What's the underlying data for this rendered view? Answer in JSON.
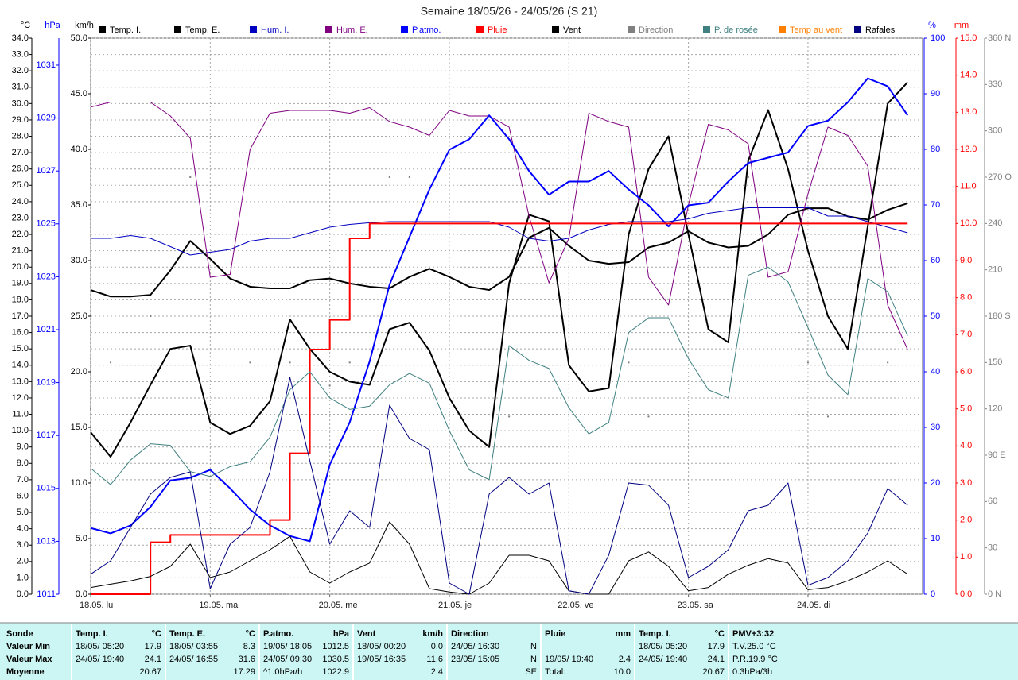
{
  "chart_data": {
    "type": "line",
    "title": "Semaine 18/05/26 - 24/05/26 (S 21)",
    "xlim": [
      0,
      167
    ],
    "xticks": [
      {
        "value": 0,
        "label": "18.05. lu"
      },
      {
        "value": 24,
        "label": "19.05. ma"
      },
      {
        "value": 48,
        "label": "20.05. me"
      },
      {
        "value": 72,
        "label": "21.05. je"
      },
      {
        "value": 96,
        "label": "22.05. ve"
      },
      {
        "value": 120,
        "label": "23.05. sa"
      },
      {
        "value": 144,
        "label": "24.05. di"
      }
    ],
    "grid": true,
    "axes": {
      "temp": {
        "label": "°C",
        "color": "#000000",
        "lim": [
          0,
          34
        ],
        "ticks": [
          {
            "value": 0,
            "label": "0.0"
          },
          {
            "value": 1,
            "label": "1.0"
          },
          {
            "value": 2,
            "label": "2.0"
          },
          {
            "value": 3,
            "label": "3.0"
          },
          {
            "value": 4,
            "label": "4.0"
          },
          {
            "value": 5,
            "label": "5.0"
          },
          {
            "value": 6,
            "label": "6.0"
          },
          {
            "value": 7,
            "label": "7.0"
          },
          {
            "value": 8,
            "label": "8.0"
          },
          {
            "value": 9,
            "label": "9.0"
          },
          {
            "value": 10,
            "label": "10.0"
          },
          {
            "value": 11,
            "label": "11.0"
          },
          {
            "value": 12,
            "label": "12.0"
          },
          {
            "value": 13,
            "label": "13.0"
          },
          {
            "value": 14,
            "label": "14.0"
          },
          {
            "value": 15,
            "label": "15.0"
          },
          {
            "value": 16,
            "label": "16.0"
          },
          {
            "value": 17,
            "label": "17.0"
          },
          {
            "value": 18,
            "label": "18.0"
          },
          {
            "value": 19,
            "label": "19.0"
          },
          {
            "value": 20,
            "label": "20.0"
          },
          {
            "value": 21,
            "label": "21.0"
          },
          {
            "value": 22,
            "label": "22.0"
          },
          {
            "value": 23,
            "label": "23.0"
          },
          {
            "value": 24,
            "label": "24.0"
          },
          {
            "value": 25,
            "label": "25.0"
          },
          {
            "value": 26,
            "label": "26.0"
          },
          {
            "value": 27,
            "label": "27.0"
          },
          {
            "value": 28,
            "label": "28.0"
          },
          {
            "value": 29,
            "label": "29.0"
          },
          {
            "value": 30,
            "label": "30.0"
          },
          {
            "value": 31,
            "label": "31.0"
          },
          {
            "value": 32,
            "label": "32.0"
          },
          {
            "value": 33,
            "label": "33.0"
          },
          {
            "value": 34,
            "label": "34.0"
          }
        ]
      },
      "hpa": {
        "label": "hPa",
        "color": "#0000ff",
        "lim": [
          1011,
          1032.02
        ],
        "ticks": [
          1011,
          1013,
          1015,
          1017,
          1019,
          1021,
          1023,
          1025,
          1027,
          1029,
          1031
        ]
      },
      "kmh": {
        "label": "km/h",
        "color": "#000000",
        "lim": [
          0,
          50
        ],
        "ticks": [
          {
            "value": 0,
            "label": "0.0"
          },
          {
            "value": 5,
            "label": "5.0"
          },
          {
            "value": 10,
            "label": "10.0"
          },
          {
            "value": 15,
            "label": "15.0"
          },
          {
            "value": 20,
            "label": "20.0"
          },
          {
            "value": 25,
            "label": "25.0"
          },
          {
            "value": 30,
            "label": "30.0"
          },
          {
            "value": 35,
            "label": "35.0"
          },
          {
            "value": 40,
            "label": "40.0"
          },
          {
            "value": 45,
            "label": "45.0"
          },
          {
            "value": 50,
            "label": "50.0"
          }
        ]
      },
      "pct": {
        "label": "%",
        "color": "#0000ff",
        "lim": [
          0,
          100
        ],
        "ticks": [
          0,
          10,
          20,
          30,
          40,
          50,
          60,
          70,
          80,
          90,
          100
        ]
      },
      "mm": {
        "label": "mm",
        "color": "#ff0000",
        "lim": [
          0,
          15
        ],
        "ticks": [
          {
            "value": 0,
            "label": "0.0"
          },
          {
            "value": 1,
            "label": "1.0"
          },
          {
            "value": 2,
            "label": "2.0"
          },
          {
            "value": 3,
            "label": "3.0"
          },
          {
            "value": 4,
            "label": "4.0"
          },
          {
            "value": 5,
            "label": "5.0"
          },
          {
            "value": 6,
            "label": "6.0"
          },
          {
            "value": 7,
            "label": "7.0"
          },
          {
            "value": 8,
            "label": "8.0"
          },
          {
            "value": 9,
            "label": "9.0"
          },
          {
            "value": 10,
            "label": "10.0"
          },
          {
            "value": 11,
            "label": "11.0"
          },
          {
            "value": 12,
            "label": "12.0"
          },
          {
            "value": 13,
            "label": "13.0"
          },
          {
            "value": 14,
            "label": "14.0"
          },
          {
            "value": 15,
            "label": "15.0"
          }
        ]
      },
      "dir": {
        "color": "#808080",
        "lim": [
          0,
          360
        ],
        "ticks": [
          {
            "value": 0,
            "label": "0 N"
          },
          30,
          60,
          {
            "value": 90,
            "label": "90 E"
          },
          120,
          150,
          {
            "value": 180,
            "label": "180 S"
          },
          210,
          240,
          {
            "value": 270,
            "label": "270 O"
          },
          300,
          330,
          {
            "value": 360,
            "label": "360 N"
          }
        ]
      }
    },
    "x": [
      0,
      4,
      8,
      12,
      16,
      20,
      24,
      28,
      32,
      36,
      40,
      44,
      48,
      52,
      56,
      60,
      64,
      68,
      72,
      76,
      80,
      84,
      88,
      92,
      96,
      100,
      104,
      108,
      112,
      116,
      120,
      124,
      128,
      132,
      136,
      140,
      144,
      148,
      152,
      156,
      160,
      164
    ],
    "series": [
      {
        "name": "Temp. I.",
        "color": "#000000",
        "axis": "temp",
        "line_width": 2,
        "values": [
          18.6,
          18.2,
          18.2,
          18.3,
          19.8,
          21.6,
          20.5,
          19.3,
          18.8,
          18.7,
          18.7,
          19.2,
          19.3,
          19.0,
          18.8,
          18.7,
          19.4,
          19.9,
          19.4,
          18.8,
          18.6,
          19.4,
          21.8,
          22.4,
          21.3,
          20.4,
          20.2,
          20.3,
          21.2,
          21.5,
          22.2,
          21.5,
          21.2,
          21.3,
          22.0,
          23.2,
          23.6,
          23.6,
          23.1,
          22.9,
          23.5,
          23.9
        ]
      },
      {
        "name": "Temp. E.",
        "color": "#000000",
        "axis": "temp",
        "line_width": 2,
        "values": [
          9.9,
          8.4,
          10.5,
          12.8,
          15.0,
          15.2,
          10.5,
          9.8,
          10.3,
          11.8,
          16.8,
          15.0,
          13.6,
          13.0,
          12.8,
          16.2,
          16.6,
          14.9,
          12.0,
          10.0,
          9.0,
          19.0,
          23.2,
          22.8,
          14.0,
          12.4,
          12.6,
          22.0,
          26.0,
          28.0,
          22.0,
          16.2,
          15.4,
          26.5,
          29.6,
          26.0,
          21.0,
          17.0,
          15.0,
          22.5,
          30.0,
          31.3
        ]
      },
      {
        "name": "Hum. I.",
        "color": "#0000c0",
        "axis": "pct",
        "line_width": 1,
        "values": [
          64,
          64,
          64.5,
          64,
          62.5,
          61,
          61.5,
          62,
          63.5,
          64,
          64,
          65,
          66,
          66.5,
          66.8,
          67,
          67,
          67,
          67,
          67,
          67,
          66,
          64,
          63.5,
          64,
          65.5,
          66.5,
          67,
          67,
          67,
          67.5,
          68.5,
          69,
          69.5,
          69.5,
          69.5,
          69.5,
          68,
          68,
          67,
          66,
          65
        ]
      },
      {
        "name": "Hum. E.",
        "color": "#800080",
        "axis": "pct",
        "line_width": 1,
        "values": [
          87.6,
          88.5,
          88.5,
          88.5,
          86,
          82,
          57,
          57.5,
          80,
          86.5,
          87,
          87,
          87,
          86.5,
          87.5,
          85,
          84,
          82.5,
          87,
          86,
          86,
          84,
          68,
          56,
          64,
          86.5,
          85,
          84,
          57,
          52,
          70,
          84.5,
          83.5,
          81,
          57,
          58,
          72,
          84,
          82.5,
          77,
          52,
          44
        ]
      },
      {
        "name": "P.atmo.",
        "color": "#0000ff",
        "axis": "hpa",
        "line_width": 2,
        "values": [
          1013.5,
          1013.3,
          1013.6,
          1014.3,
          1015.3,
          1015.4,
          1015.7,
          1015.0,
          1014.2,
          1013.6,
          1013.2,
          1013.0,
          1015.9,
          1017.5,
          1019.8,
          1022.7,
          1024.5,
          1026.3,
          1027.8,
          1028.2,
          1029.1,
          1028.2,
          1027.0,
          1026.1,
          1026.6,
          1026.6,
          1027.0,
          1026.3,
          1025.7,
          1024.9,
          1025.7,
          1025.8,
          1026.6,
          1027.3,
          1027.5,
          1027.7,
          1028.7,
          1028.9,
          1029.6,
          1030.5,
          1030.2,
          1029.1
        ]
      },
      {
        "name": "Pluie",
        "color": "#ff0000",
        "axis": "mm",
        "line_width": 2,
        "style": "step",
        "values": [
          0,
          0,
          0,
          1.4,
          1.6,
          1.6,
          1.6,
          1.6,
          1.6,
          2.0,
          3.8,
          6.6,
          7.4,
          9.6,
          10.0,
          10.0,
          10.0,
          10.0,
          10.0,
          10.0,
          10.0,
          10.0,
          10.0,
          10.0,
          10.0,
          10.0,
          10.0,
          10.0,
          10.0,
          10.0,
          10.0,
          10.0,
          10.0,
          10.0,
          10.0,
          10.0,
          10.0,
          10.0,
          10.0,
          10.0,
          10.0,
          10.0
        ]
      },
      {
        "name": "Vent",
        "color": "#000000",
        "axis": "kmh",
        "line_width": 1,
        "values": [
          0.6,
          0.9,
          1.2,
          1.6,
          2.5,
          4.5,
          1.5,
          2.0,
          3.0,
          4.0,
          5.2,
          2.0,
          1.0,
          2.0,
          2.8,
          6.5,
          4.5,
          0.5,
          0.2,
          0.0,
          1.0,
          3.5,
          3.5,
          3.0,
          0.3,
          0.0,
          0.0,
          3.0,
          3.8,
          2.5,
          0.3,
          0.6,
          1.8,
          2.6,
          3.2,
          2.8,
          0.4,
          0.6,
          1.2,
          2.0,
          3.0,
          1.8
        ]
      },
      {
        "name": "Direction",
        "color": "#808080",
        "axis": "dir",
        "style": "dots",
        "values": [
          120,
          150,
          null,
          180,
          null,
          270,
          null,
          null,
          150,
          null,
          150,
          null,
          135,
          150,
          null,
          270,
          270,
          null,
          null,
          null,
          null,
          115,
          null,
          null,
          null,
          null,
          null,
          150,
          115,
          null,
          null,
          null,
          null,
          270,
          null,
          null,
          150,
          115,
          null,
          null,
          150,
          null
        ]
      },
      {
        "name": "P. de rosée",
        "color": "#408080",
        "axis": "temp",
        "line_width": 1,
        "values": [
          7.7,
          6.7,
          8.2,
          9.2,
          9.1,
          7.5,
          7.2,
          7.8,
          8.1,
          9.6,
          12.5,
          13.6,
          12.0,
          11.3,
          11.5,
          12.8,
          13.5,
          12.9,
          10.0,
          7.6,
          7.0,
          15.2,
          14.3,
          13.8,
          11.4,
          9.8,
          10.5,
          16.0,
          16.9,
          16.9,
          14.4,
          12.5,
          12.0,
          19.5,
          20.0,
          19.1,
          16.3,
          13.4,
          12.2,
          19.3,
          18.5,
          15.8
        ]
      },
      {
        "name": "Temp au vent",
        "color": "#ff8000",
        "axis": "temp",
        "line_width": 1,
        "values": [
          null,
          null,
          null,
          null,
          null,
          null,
          null,
          null,
          null,
          null,
          null,
          null,
          null,
          null,
          null,
          null,
          null,
          null,
          null,
          null,
          null,
          null,
          null,
          null,
          null,
          null,
          null,
          null,
          null,
          null,
          null,
          null,
          null,
          null,
          null,
          null,
          null,
          null,
          null,
          null,
          null,
          null
        ]
      },
      {
        "name": "Rafales",
        "color": "#000080",
        "axis": "kmh",
        "line_width": 1,
        "values": [
          1.8,
          3.0,
          6.0,
          9.0,
          10.5,
          11.0,
          0.5,
          4.5,
          6.0,
          11.0,
          19.5,
          12.0,
          4.5,
          7.5,
          6.0,
          17.0,
          14.0,
          13.0,
          1.0,
          0.0,
          9.0,
          10.5,
          9.0,
          10.0,
          0.3,
          0.0,
          3.5,
          10.0,
          9.8,
          8.0,
          1.5,
          2.5,
          4.0,
          7.5,
          8.0,
          10.0,
          0.8,
          1.5,
          3.0,
          5.5,
          9.5,
          8.0
        ]
      }
    ]
  },
  "stats": {
    "row_labels": [
      "Sonde",
      "Valeur Min",
      "Valeur Max",
      "Moyenne"
    ],
    "groups": [
      {
        "header": [
          "Temp. I.",
          "°C"
        ],
        "rows": [
          [
            "18/05/ 05:20",
            "17.9"
          ],
          [
            "24/05/ 19:40",
            "24.1"
          ],
          [
            "20.67"
          ]
        ]
      },
      {
        "header": [
          "Temp. E.",
          "°C"
        ],
        "rows": [
          [
            "18/05/ 03:55",
            "8.3"
          ],
          [
            "24/05/ 16:55",
            "31.6"
          ],
          [
            "17.29"
          ]
        ]
      },
      {
        "header": [
          "P.atmo.",
          "hPa"
        ],
        "rows": [
          [
            "19/05/ 18:05",
            "1012.5"
          ],
          [
            "24/05/ 09:30",
            "1030.5"
          ],
          [
            "^1.0hPa/h",
            "1022.9"
          ]
        ]
      },
      {
        "header": [
          "Vent",
          "km/h"
        ],
        "rows": [
          [
            "18/05/ 00:20",
            "0.0"
          ],
          [
            "19/05/ 16:35",
            "11.6"
          ],
          [
            "2.4"
          ]
        ]
      },
      {
        "header": [
          "Direction"
        ],
        "rows": [
          [
            "24/05/ 16:30",
            "N"
          ],
          [
            "23/05/ 15:05",
            "N"
          ],
          [
            "SE"
          ]
        ]
      },
      {
        "header": [
          "Pluie",
          "mm"
        ],
        "rows": [
          [],
          [
            "19/05/ 19:40",
            "2.4"
          ],
          [
            "Total:",
            "10.0"
          ]
        ]
      },
      {
        "header": [
          "Temp. I.",
          "°C"
        ],
        "rows": [
          [
            "18/05/ 05:20",
            "17.9"
          ],
          [
            "24/05/ 19:40",
            "24.1"
          ],
          [
            "20.67"
          ]
        ]
      },
      {
        "header": [
          "PMV+3:32"
        ],
        "align": "left",
        "rows": [
          [
            "T.V.25.0 °C"
          ],
          [
            "P.R.19.9 °C"
          ],
          [
            "0.3hPa/3h"
          ]
        ]
      }
    ]
  }
}
